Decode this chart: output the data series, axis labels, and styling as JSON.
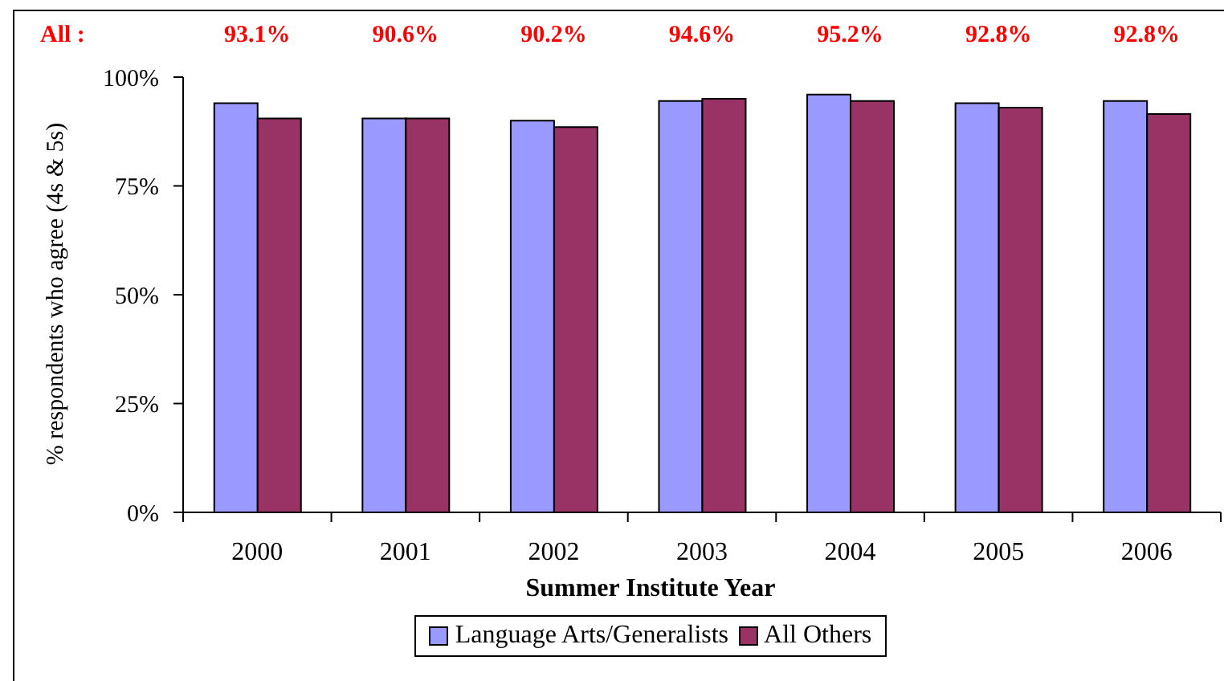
{
  "chart_data": {
    "type": "bar",
    "categories": [
      "2000",
      "2001",
      "2002",
      "2003",
      "2004",
      "2005",
      "2006"
    ],
    "series": [
      {
        "name": "Language Arts/Generalists",
        "color": "#9999ff",
        "values": [
          94,
          90.5,
          90,
          94.5,
          96,
          94,
          94.5
        ]
      },
      {
        "name": "All Others",
        "color": "#993366",
        "values": [
          90.5,
          90.5,
          88.5,
          95,
          94.5,
          93,
          91.5
        ]
      }
    ],
    "xlabel": "Summer Institute Year",
    "ylabel": "% respondents who agree (4s & 5s)",
    "ylim": [
      0,
      100
    ],
    "yticks": [
      {
        "value": 0,
        "label": "0%"
      },
      {
        "value": 25,
        "label": "25%"
      },
      {
        "value": 50,
        "label": "50%"
      },
      {
        "value": 75,
        "label": "75%"
      },
      {
        "value": 100,
        "label": "100%"
      }
    ],
    "annotations": [
      "All :",
      "93.1%",
      "90.6%",
      "90.2%",
      "94.6%",
      "95.2%",
      "92.8%",
      "92.8%"
    ],
    "legend": "bottom"
  }
}
